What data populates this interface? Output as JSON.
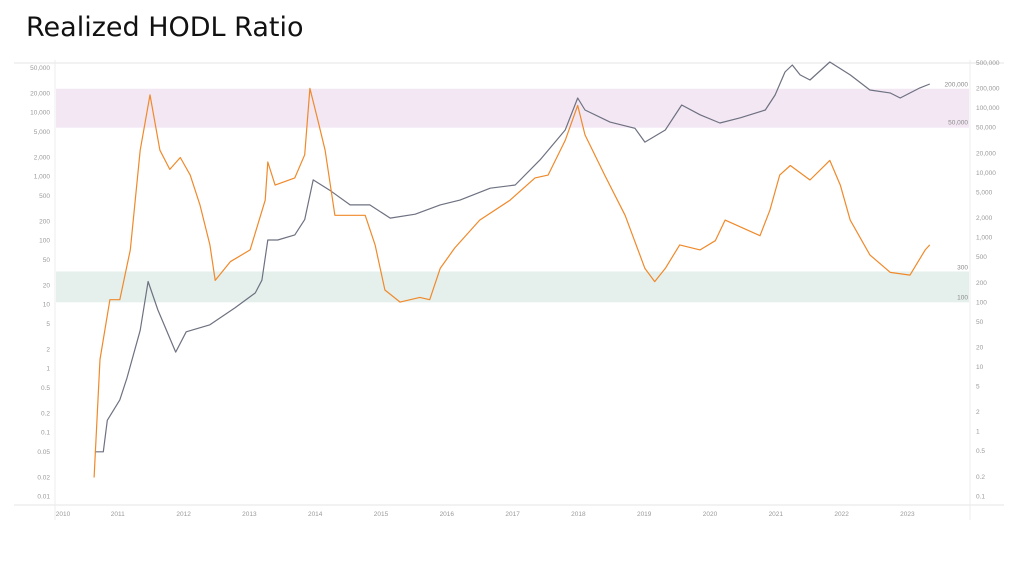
{
  "title": "Realized HODL Ratio",
  "chart_data": {
    "type": "line",
    "title": "Realized HODL Ratio",
    "x_ticks": [
      "2010",
      "2011",
      "2012",
      "2013",
      "2014",
      "2015",
      "2016",
      "2017",
      "2018",
      "2019",
      "2020",
      "2021",
      "2022",
      "2023"
    ],
    "left_axis": {
      "scale": "log",
      "range": [
        0.01,
        50000
      ],
      "ticks": [
        "50,000",
        "20,000",
        "10,000",
        "5,000",
        "2,000",
        "1,000",
        "500",
        "200",
        "100",
        "50",
        "20",
        "10",
        "5",
        "2",
        "1",
        "0.5",
        "0.2",
        "0.1",
        "0.05",
        "0.02",
        "0.01"
      ],
      "tick_values": [
        50000,
        20000,
        10000,
        5000,
        2000,
        1000,
        500,
        200,
        100,
        50,
        20,
        10,
        5,
        2,
        1,
        0.5,
        0.2,
        0.1,
        0.05,
        0.02,
        0.01
      ]
    },
    "right_axis": {
      "scale": "log",
      "range": [
        0.1,
        500000
      ],
      "ticks": [
        "500,000",
        "200,000",
        "100,000",
        "50,000",
        "20,000",
        "10,000",
        "5,000",
        "2,000",
        "1,000",
        "500",
        "200",
        "100",
        "50",
        "20",
        "10",
        "5",
        "2",
        "1",
        "0.5",
        "0.2",
        "0.1"
      ],
      "tick_values": [
        500000,
        200000,
        100000,
        50000,
        20000,
        10000,
        5000,
        2000,
        1000,
        500,
        200,
        100,
        50,
        20,
        10,
        5,
        2,
        1,
        0.5,
        0.2,
        0.1
      ]
    },
    "bands": [
      {
        "axis": "right",
        "low": 50000,
        "high": 200000,
        "low_label": "50,000",
        "high_label": "200,000",
        "color": "#f3e7f4"
      },
      {
        "axis": "right",
        "low": 100,
        "high": 300,
        "low_label": "100",
        "high_label": "300",
        "color": "#e5f0ec"
      }
    ],
    "grid": false,
    "series": [
      {
        "axis": "left",
        "color": "#f0892a",
        "x": [
          2010.64,
          2010.73,
          2010.88,
          2011.03,
          2011.19,
          2011.34,
          2011.49,
          2011.64,
          2011.79,
          2011.95,
          2012.1,
          2012.25,
          2012.4,
          2012.48,
          2012.71,
          2013.01,
          2013.24,
          2013.28,
          2013.39,
          2013.69,
          2013.84,
          2013.92,
          2014.04,
          2014.15,
          2014.3,
          2014.6,
          2014.76,
          2014.91,
          2015.06,
          2015.29,
          2015.59,
          2015.74,
          2015.9,
          2016.12,
          2016.5,
          2016.96,
          2017.34,
          2017.54,
          2017.8,
          2017.99,
          2018.1,
          2018.4,
          2018.71,
          2019.01,
          2019.16,
          2019.32,
          2019.54,
          2019.85,
          2020.08,
          2020.23,
          2020.76,
          2020.91,
          2021.06,
          2021.22,
          2021.52,
          2021.82,
          2021.98,
          2022.13,
          2022.43,
          2022.74,
          2023.04,
          2023.27,
          2023.34
        ],
        "y": [
          0.02,
          1.4,
          12,
          12,
          72,
          2600,
          19000,
          2600,
          1300,
          2000,
          1060,
          360,
          86,
          24,
          47,
          72,
          430,
          1700,
          740,
          960,
          2200,
          24000,
          7700,
          2600,
          250,
          250,
          250,
          86,
          17,
          11,
          13,
          12,
          37,
          77,
          210,
          430,
          960,
          1060,
          3700,
          13000,
          4500,
          1060,
          250,
          37,
          23,
          37,
          86,
          72,
          100,
          210,
          120,
          300,
          1060,
          1500,
          890,
          1800,
          740,
          210,
          60,
          32,
          29,
          72,
          86
        ]
      },
      {
        "axis": "right",
        "color": "#6e7180",
        "x": [
          2010.65,
          2010.78,
          2010.84,
          2011.03,
          2011.14,
          2011.34,
          2011.46,
          2011.61,
          2011.88,
          2012.04,
          2012.4,
          2012.78,
          2013.09,
          2013.19,
          2013.28,
          2013.43,
          2013.69,
          2013.84,
          2013.97,
          2014.22,
          2014.53,
          2014.83,
          2015.14,
          2015.52,
          2015.9,
          2016.2,
          2016.66,
          2017.04,
          2017.42,
          2017.8,
          2017.99,
          2018.1,
          2018.48,
          2018.86,
          2019.01,
          2019.32,
          2019.57,
          2019.85,
          2020.15,
          2020.46,
          2020.84,
          2020.99,
          2021.14,
          2021.25,
          2021.37,
          2021.52,
          2021.82,
          2022.13,
          2022.43,
          2022.74,
          2022.89,
          2023.19,
          2023.34
        ],
        "y": [
          0.49,
          0.49,
          1.5,
          3.1,
          6.8,
          37,
          210,
          76,
          17,
          35,
          45,
          82,
          140,
          220,
          920,
          920,
          1100,
          1900,
          7800,
          5400,
          3200,
          3200,
          2000,
          2300,
          3200,
          3800,
          5800,
          6500,
          16000,
          46000,
          144000,
          94000,
          61000,
          49000,
          30000,
          46000,
          112000,
          79000,
          59000,
          71000,
          94000,
          160000,
          363000,
          466000,
          327000,
          273000,
          518000,
          327000,
          191000,
          172000,
          144000,
          206000,
          237000
        ]
      }
    ]
  }
}
